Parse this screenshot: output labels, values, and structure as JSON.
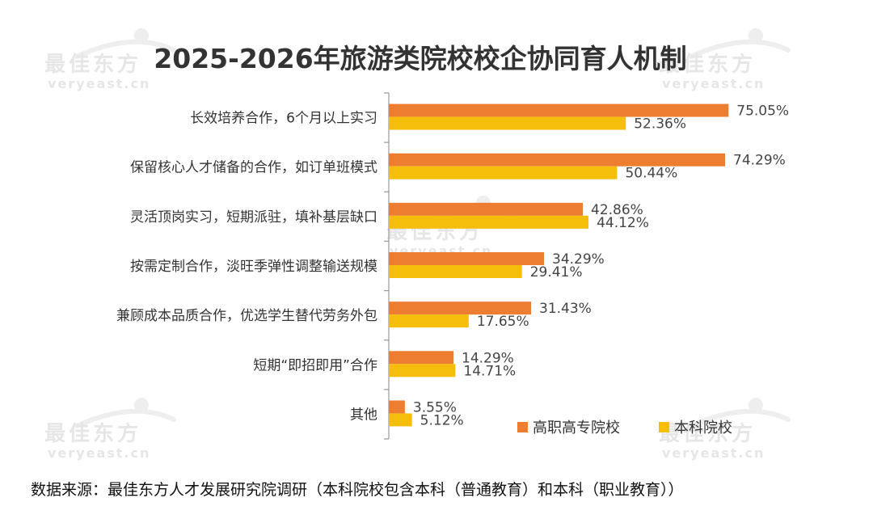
{
  "chart_data": {
    "type": "bar",
    "orientation": "horizontal",
    "title": "2025-2026年旅游类院校校企协同育人机制",
    "categories": [
      "长效培养合作，6个月以上实习",
      "保留核心人才储备的合作，如订单班模式",
      "灵活顶岗实习，短期派驻，填补基层缺口",
      "按需定制合作，淡旺季弹性调整输送规模",
      "兼顾成本品质合作，优选学生替代劳务外包",
      "短期“即招即用”合作",
      "其他"
    ],
    "series": [
      {
        "name": "高职高专院校",
        "color": "#ED7D31",
        "values": [
          75.05,
          74.29,
          42.86,
          34.29,
          31.43,
          14.29,
          3.55
        ],
        "labels": [
          "75.05%",
          "74.29%",
          "42.86%",
          "34.29%",
          "31.43%",
          "14.29%",
          "3.55%"
        ]
      },
      {
        "name": "本科院校",
        "color": "#F5BE0B",
        "values": [
          52.36,
          50.44,
          44.12,
          29.41,
          17.65,
          14.71,
          5.12
        ],
        "labels": [
          "52.36%",
          "50.44%",
          "44.12%",
          "29.41%",
          "17.65%",
          "14.71%",
          "5.12%"
        ]
      }
    ],
    "xlim": [
      0,
      100
    ],
    "grid": false,
    "legend_position": "bottom-right",
    "axis_color": "#999999"
  },
  "watermark": {
    "main": "最佳东方",
    "sub": "veryeast.cn"
  },
  "source": "数据来源：最佳东方人才发展研究院调研（本科院校包含本科（普通教育）和本科（职业教育））"
}
